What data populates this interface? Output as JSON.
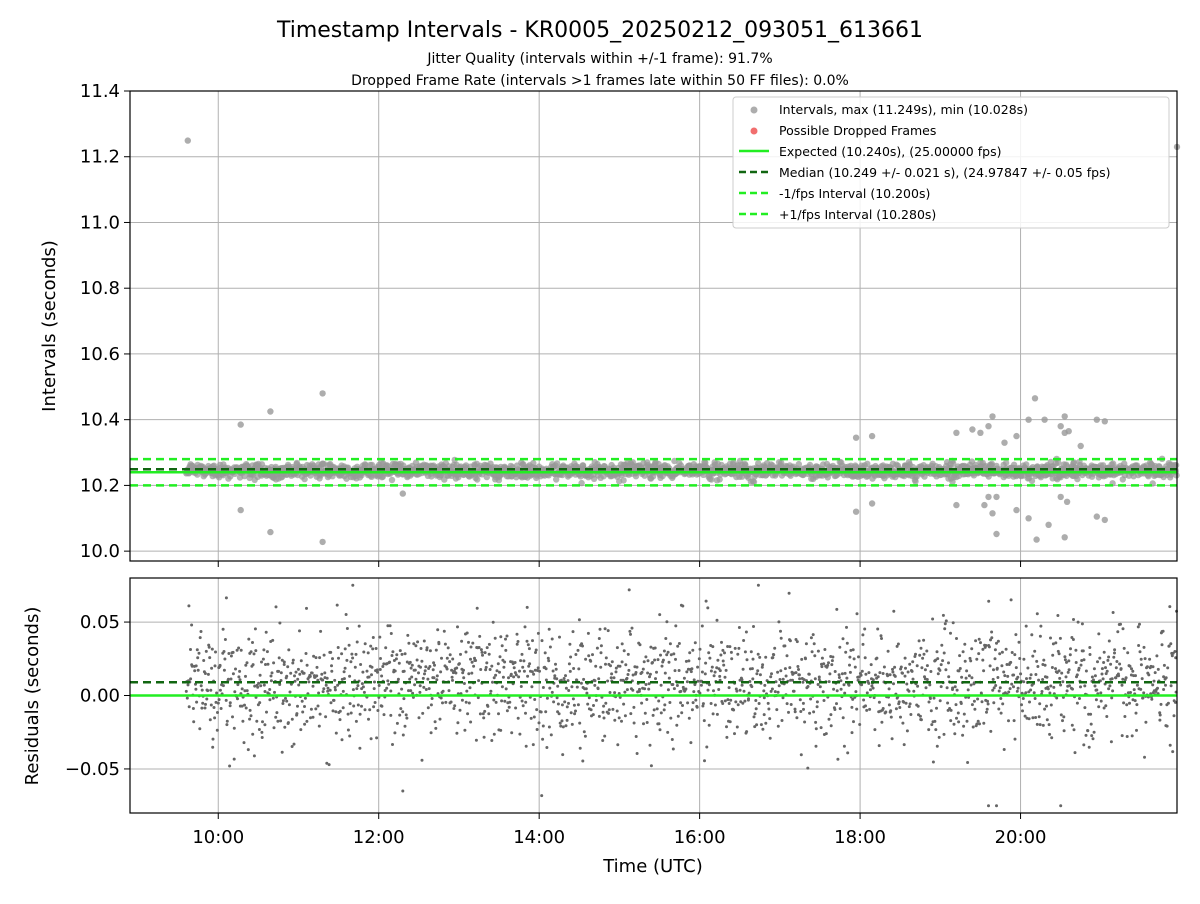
{
  "chart_data": [
    {
      "type": "scatter",
      "title": "Timestamp Intervals - KR0005_20250212_093051_613661",
      "subtitle_lines": [
        "Jitter Quality (intervals within +/-1 frame): 91.7%",
        "Dropped Frame Rate (intervals >1 frames late within 50 FF files): 0.0%"
      ],
      "xlabel": "",
      "ylabel": "Intervals (seconds)",
      "x_ticks": [
        "10:00",
        "12:00",
        "14:00",
        "16:00",
        "18:00",
        "20:00"
      ],
      "x_tick_hours": [
        10,
        12,
        14,
        16,
        18,
        20
      ],
      "xlim_hours": [
        8.9,
        21.95
      ],
      "ylim": [
        9.97,
        11.4
      ],
      "y_ticks": [
        10.0,
        10.2,
        10.4,
        10.6,
        10.8,
        11.0,
        11.2,
        11.4
      ],
      "y_tick_labels": [
        "10.0",
        "10.2",
        "10.4",
        "10.6",
        "10.8",
        "11.0",
        "11.2",
        "11.4"
      ],
      "grid": true,
      "legend_position": "top-right",
      "data_span_hours": [
        9.6,
        21.95
      ],
      "series": [
        {
          "name": "Intervals, max (11.249s), min (10.028s)",
          "kind": "points",
          "color": "#999999",
          "center": 10.245,
          "spread": 0.02,
          "max": 11.249,
          "min": 10.028
        },
        {
          "name": "Possible Dropped Frames",
          "kind": "points",
          "color": "#ee5555",
          "values": []
        },
        {
          "name": "Expected (10.240s), (25.00000 fps)",
          "kind": "hline",
          "y": 10.24,
          "color": "#22ee22",
          "style": "solid"
        },
        {
          "name": "Median (10.249 +/- 0.021 s), (24.97847 +/- 0.05 fps)",
          "kind": "hline",
          "y": 10.249,
          "color": "#116611",
          "style": "dashed"
        },
        {
          "name": "-1/fps Interval (10.200s)",
          "kind": "hline",
          "y": 10.2,
          "color": "#22ee22",
          "style": "dashed"
        },
        {
          "name": "+1/fps Interval (10.280s)",
          "kind": "hline",
          "y": 10.28,
          "color": "#22ee22",
          "style": "dashed"
        }
      ],
      "outliers": [
        {
          "x": 9.62,
          "y": 11.249
        },
        {
          "x": 10.28,
          "y": 10.385
        },
        {
          "x": 10.28,
          "y": 10.125
        },
        {
          "x": 10.65,
          "y": 10.425
        },
        {
          "x": 10.65,
          "y": 10.058
        },
        {
          "x": 11.3,
          "y": 10.48
        },
        {
          "x": 11.3,
          "y": 10.028
        },
        {
          "x": 12.3,
          "y": 10.175
        },
        {
          "x": 17.95,
          "y": 10.345
        },
        {
          "x": 17.95,
          "y": 10.12
        },
        {
          "x": 18.15,
          "y": 10.35
        },
        {
          "x": 18.15,
          "y": 10.145
        },
        {
          "x": 19.2,
          "y": 10.36
        },
        {
          "x": 19.2,
          "y": 10.14
        },
        {
          "x": 19.4,
          "y": 10.37
        },
        {
          "x": 19.5,
          "y": 10.36
        },
        {
          "x": 19.55,
          "y": 10.14
        },
        {
          "x": 19.6,
          "y": 10.38
        },
        {
          "x": 19.6,
          "y": 10.165
        },
        {
          "x": 19.65,
          "y": 10.41
        },
        {
          "x": 19.65,
          "y": 10.115
        },
        {
          "x": 19.7,
          "y": 10.165
        },
        {
          "x": 19.7,
          "y": 10.052
        },
        {
          "x": 19.8,
          "y": 10.33
        },
        {
          "x": 19.95,
          "y": 10.35
        },
        {
          "x": 19.95,
          "y": 10.125
        },
        {
          "x": 20.1,
          "y": 10.4
        },
        {
          "x": 20.1,
          "y": 10.1
        },
        {
          "x": 20.18,
          "y": 10.465
        },
        {
          "x": 20.2,
          "y": 10.035
        },
        {
          "x": 20.3,
          "y": 10.4
        },
        {
          "x": 20.35,
          "y": 10.08
        },
        {
          "x": 20.5,
          "y": 10.38
        },
        {
          "x": 20.5,
          "y": 10.165
        },
        {
          "x": 20.55,
          "y": 10.41
        },
        {
          "x": 20.55,
          "y": 10.36
        },
        {
          "x": 20.55,
          "y": 10.042
        },
        {
          "x": 20.58,
          "y": 10.15
        },
        {
          "x": 20.6,
          "y": 10.365
        },
        {
          "x": 20.75,
          "y": 10.32
        },
        {
          "x": 20.95,
          "y": 10.4
        },
        {
          "x": 20.95,
          "y": 10.105
        },
        {
          "x": 21.05,
          "y": 10.395
        },
        {
          "x": 21.05,
          "y": 10.095
        },
        {
          "x": 21.95,
          "y": 11.23
        }
      ]
    },
    {
      "type": "scatter",
      "title": "",
      "xlabel": "Time (UTC)",
      "ylabel": "Residuals (seconds)",
      "ylim": [
        -0.08,
        0.08
      ],
      "y_ticks": [
        -0.05,
        0.0,
        0.05
      ],
      "y_tick_labels": [
        "−0.05",
        "0.00",
        "0.05"
      ],
      "grid": true,
      "series": [
        {
          "name": "",
          "kind": "points",
          "color": "#666666",
          "spread": 0.02
        },
        {
          "name": "",
          "kind": "hline",
          "y": 0.009,
          "color": "#116611",
          "style": "dashed"
        },
        {
          "name": "",
          "kind": "hline",
          "y": 0.0,
          "color": "#22ee22",
          "style": "solid"
        }
      ]
    }
  ]
}
